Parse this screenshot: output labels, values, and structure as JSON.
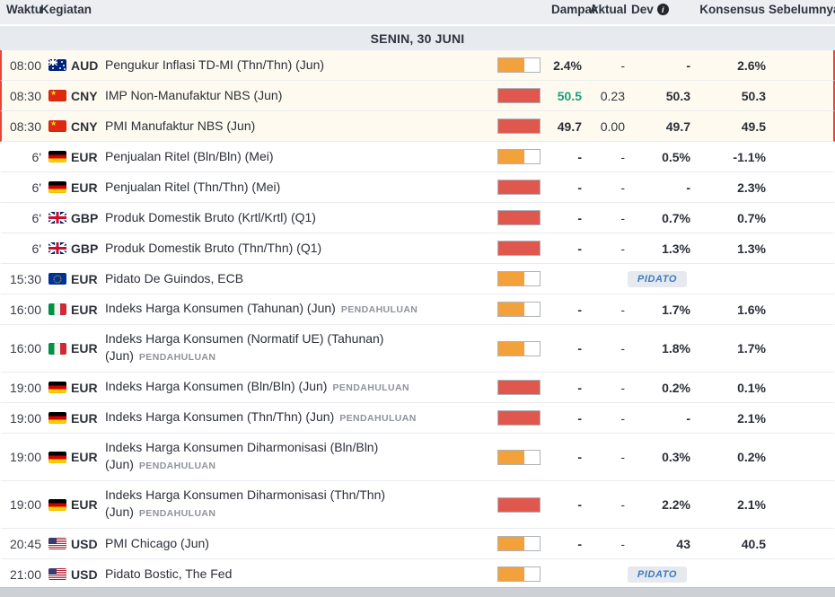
{
  "labels": {
    "speech_badge": "PIDATO",
    "dev_info_icon": "i"
  },
  "colors": {
    "impact_medium": "#f2a13b",
    "impact_high": "#e0584d",
    "actual_positive": "#1b9e7e",
    "highlight_border": "#e8443a"
  },
  "header": {
    "time": "Waktu",
    "event": "Kegiatan",
    "impact": "Dampak",
    "actual": "Aktual",
    "dev": "Dev",
    "consensus": "Konsensus",
    "previous": "Sebelumnya"
  },
  "date_header": "SENIN, 30 JUNI",
  "rows": [
    {
      "time": "08:00",
      "flag": "aud",
      "currency": "AUD",
      "event": "Pengukur Inflasi TD-MI (Thn/Thn) (Jun)",
      "tag": "",
      "impact": "medium",
      "type": "data",
      "actual": "2.4%",
      "dev": "-",
      "consensus": "-",
      "previous": "2.6%",
      "highlight": true,
      "actual_green": false
    },
    {
      "time": "08:30",
      "flag": "cny",
      "currency": "CNY",
      "event": "IMP Non-Manufaktur NBS (Jun)",
      "tag": "",
      "impact": "high",
      "type": "data",
      "actual": "50.5",
      "dev": "0.23",
      "consensus": "50.3",
      "previous": "50.3",
      "highlight": true,
      "actual_green": true
    },
    {
      "time": "08:30",
      "flag": "cny",
      "currency": "CNY",
      "event": "PMI Manufaktur NBS (Jun)",
      "tag": "",
      "impact": "high",
      "type": "data",
      "actual": "49.7",
      "dev": "0.00",
      "consensus": "49.7",
      "previous": "49.5",
      "highlight": true,
      "actual_green": false
    },
    {
      "time": "6'",
      "flag": "deu",
      "currency": "EUR",
      "event": "Penjualan Ritel (Bln/Bln) (Mei)",
      "tag": "",
      "impact": "medium",
      "type": "data",
      "actual": "-",
      "dev": "-",
      "consensus": "0.5%",
      "previous": "-1.1%",
      "highlight": false,
      "actual_green": false
    },
    {
      "time": "6'",
      "flag": "deu",
      "currency": "EUR",
      "event": "Penjualan Ritel (Thn/Thn) (Mei)",
      "tag": "",
      "impact": "high",
      "type": "data",
      "actual": "-",
      "dev": "-",
      "consensus": "-",
      "previous": "2.3%",
      "highlight": false,
      "actual_green": false
    },
    {
      "time": "6'",
      "flag": "gbr",
      "currency": "GBP",
      "event": "Produk Domestik Bruto (Krtl/Krtl) (Q1)",
      "tag": "",
      "impact": "high",
      "type": "data",
      "actual": "-",
      "dev": "-",
      "consensus": "0.7%",
      "previous": "0.7%",
      "highlight": false,
      "actual_green": false
    },
    {
      "time": "6'",
      "flag": "gbr",
      "currency": "GBP",
      "event": "Produk Domestik Bruto (Thn/Thn) (Q1)",
      "tag": "",
      "impact": "high",
      "type": "data",
      "actual": "-",
      "dev": "-",
      "consensus": "1.3%",
      "previous": "1.3%",
      "highlight": false,
      "actual_green": false
    },
    {
      "time": "15:30",
      "flag": "eur",
      "currency": "EUR",
      "event": "Pidato De Guindos, ECB",
      "tag": "",
      "impact": "medium",
      "type": "speech",
      "actual": "",
      "dev": "",
      "consensus": "",
      "previous": "",
      "highlight": false,
      "actual_green": false
    },
    {
      "time": "16:00",
      "flag": "ita",
      "currency": "EUR",
      "event": "Indeks Harga Konsumen (Tahunan) (Jun)",
      "tag": "PENDAHULUAN",
      "impact": "medium",
      "type": "data",
      "actual": "-",
      "dev": "-",
      "consensus": "1.7%",
      "previous": "1.6%",
      "highlight": false,
      "actual_green": false
    },
    {
      "time": "16:00",
      "flag": "ita",
      "currency": "EUR",
      "event": "Indeks Harga Konsumen (Normatif UE) (Tahunan) (Jun)",
      "tag": "PENDAHULUAN",
      "impact": "medium",
      "type": "data",
      "actual": "-",
      "dev": "-",
      "consensus": "1.8%",
      "previous": "1.7%",
      "highlight": false,
      "actual_green": false
    },
    {
      "time": "19:00",
      "flag": "deu",
      "currency": "EUR",
      "event": "Indeks Harga Konsumen (Bln/Bln) (Jun)",
      "tag": "PENDAHULUAN",
      "impact": "high",
      "type": "data",
      "actual": "-",
      "dev": "-",
      "consensus": "0.2%",
      "previous": "0.1%",
      "highlight": false,
      "actual_green": false
    },
    {
      "time": "19:00",
      "flag": "deu",
      "currency": "EUR",
      "event": "Indeks Harga Konsumen (Thn/Thn) (Jun)",
      "tag": "PENDAHULUAN",
      "impact": "high",
      "type": "data",
      "actual": "-",
      "dev": "-",
      "consensus": "-",
      "previous": "2.1%",
      "highlight": false,
      "actual_green": false
    },
    {
      "time": "19:00",
      "flag": "deu",
      "currency": "EUR",
      "event": "Indeks Harga Konsumen Diharmonisasi (Bln/Bln) (Jun)",
      "tag": "PENDAHULUAN",
      "impact": "medium",
      "type": "data",
      "actual": "-",
      "dev": "-",
      "consensus": "0.3%",
      "previous": "0.2%",
      "highlight": false,
      "actual_green": false
    },
    {
      "time": "19:00",
      "flag": "deu",
      "currency": "EUR",
      "event": "Indeks Harga Konsumen Diharmonisasi (Thn/Thn) (Jun)",
      "tag": "PENDAHULUAN",
      "impact": "high",
      "type": "data",
      "actual": "-",
      "dev": "-",
      "consensus": "2.2%",
      "previous": "2.1%",
      "highlight": false,
      "actual_green": false
    },
    {
      "time": "20:45",
      "flag": "usa",
      "currency": "USD",
      "event": "PMI Chicago (Jun)",
      "tag": "",
      "impact": "medium",
      "type": "data",
      "actual": "-",
      "dev": "-",
      "consensus": "43",
      "previous": "40.5",
      "highlight": false,
      "actual_green": false
    },
    {
      "time": "21:00",
      "flag": "usa",
      "currency": "USD",
      "event": "Pidato Bostic, The Fed",
      "tag": "",
      "impact": "medium",
      "type": "speech",
      "actual": "",
      "dev": "",
      "consensus": "",
      "previous": "",
      "highlight": false,
      "actual_green": false
    }
  ]
}
